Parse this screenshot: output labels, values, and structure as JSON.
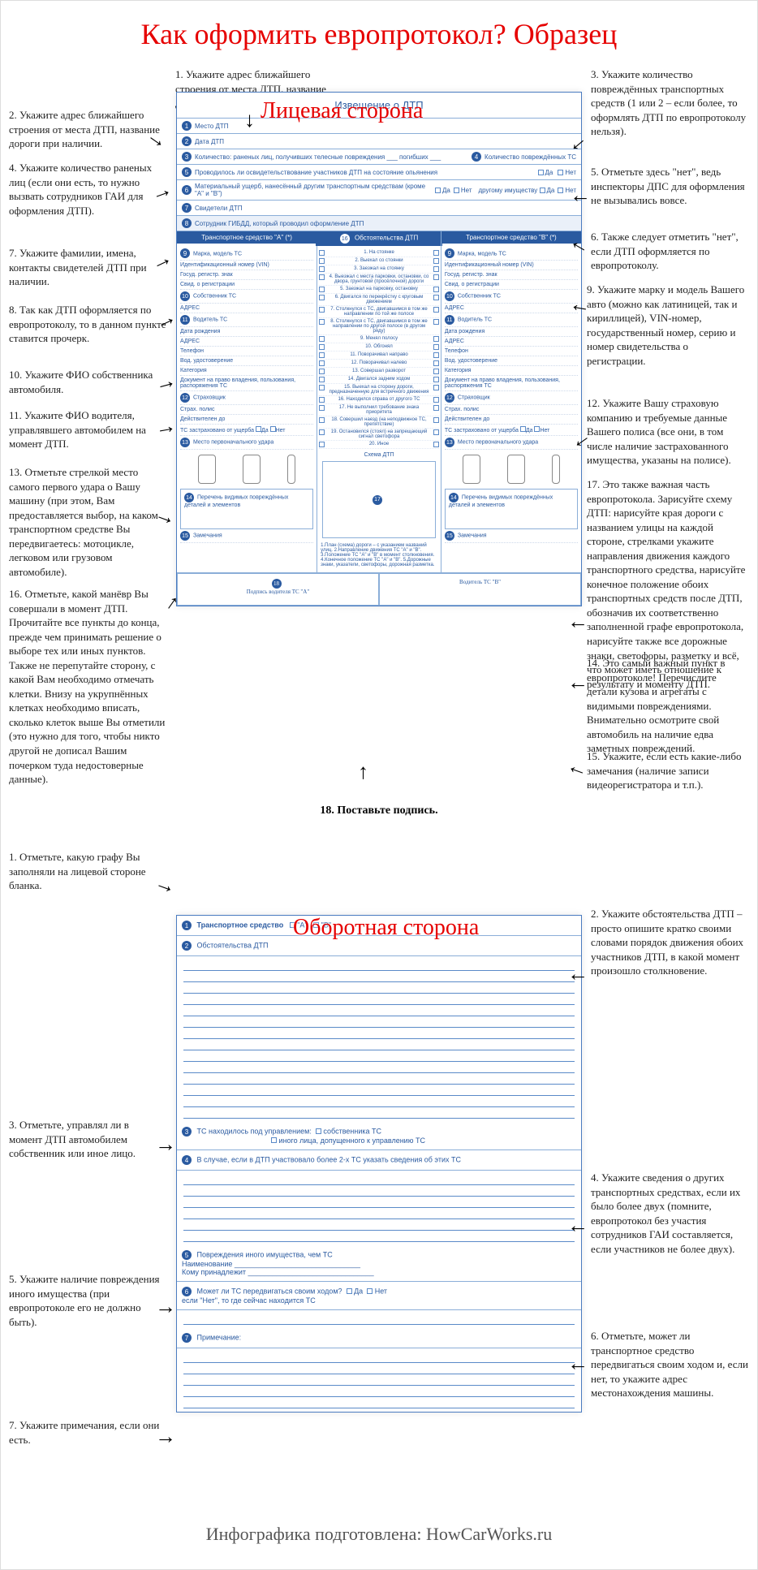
{
  "title": "Как оформить европротокол? Образец",
  "front_label": "Лицевая сторона",
  "back_label": "Оборотная сторона",
  "form_header": "Извещение о ДТП",
  "col_a_head": "Транспортное средство \"А\" (*)",
  "col_b_head": "Транспортное средство \"В\" (*)",
  "col_mid_head": "Обстоятельства ДТП",
  "row1": "Место ДТП",
  "row2": "Дата ДТП",
  "row3": "Количество: раненых лиц, получивших телесные повреждения ___ погибших ___",
  "row3b": "Количество повреждённых ТС",
  "row4": "Проводилось ли освидетельствование участников ДТП на состояние опьянения",
  "row5": "Материальный ущерб, нанесённый другим транспортным средствам (кроме \"А\" и \"В\")",
  "row5b": "другому имуществу",
  "row6": "Свидетели ДТП",
  "row7": "Сотрудник ГИБДД, который проводил оформление ДТП",
  "f_marka": "Марка, модель ТС",
  "f_vin": "Идентификационный номер (VIN)",
  "f_gos": "Госуд. регистр. знак",
  "f_svid": "Свид. о регистрации",
  "f_own": "Собственник ТС",
  "f_addr": "АДРЕС",
  "f_drv": "Водитель ТС",
  "f_dob": "Дата рождения",
  "f_tel": "Телефон",
  "f_vod": "Вод. удостоверение",
  "f_cat": "Категория",
  "f_doc": "Документ на право владения, пользования, распоряжения ТС",
  "f_ins": "Страховщик",
  "f_pol": "Страх. полис",
  "f_valid": "Действителен до",
  "f_zast": "ТС застраховано от ущерба",
  "f_hit": "Место первоначального удара",
  "f_dmg": "Перечень видимых повреждённых деталей и элементов",
  "f_note": "Замечания",
  "f_sign_a": "Подпись водителя ТС \"А\"",
  "f_sign_b": "Водитель ТС \"В\"",
  "schema": "Схема ДТП",
  "mid_items": [
    "На стоянке",
    "Выехал со стоянки",
    "Заезжал на стоянку",
    "Выезжал с места парковки, остановки, со двора, грунтовой (просёлочной) дороги",
    "Заезжал на парковку, остановку",
    "Двигался по перекрёстку с круговым движением",
    "Столкнулся с ТС, двигавшимся в том же направлении по той же полосе",
    "Столкнулся с ТС, двигавшимся в том же направлении по другой полосе (в другом ряду)",
    "Менял полосу",
    "Обгонял",
    "Поворачивал направо",
    "Поворачивал налево",
    "Совершал разворот",
    "Двигался задним ходом",
    "Выехал на сторону дороги, предназначенную для встречного движения",
    "Находился справа от другого ТС",
    "Не выполнил требование знака приоритета",
    "Совершил наезд (на неподвижное ТС, препятствие)",
    "Остановился (стоял) на запрещающий сигнал светофора",
    "Иное"
  ],
  "plan_text": "1.План (схема) дороги – с указанием названий улиц. 2.Направление движения ТС \"А\" и \"В\". 3.Положение ТС \"А\" и \"В\" в момент столкновения. 4.Конечное положение ТС \"А\" и \"В\". 5.Дорожные знаки, указатели, светофоры, дорожная разметка.",
  "back_r1": "Транспортное средство",
  "back_r2": "Обстоятельства ДТП",
  "back_r3": "ТС находилось под управлением:",
  "back_r3a": "собственника ТС",
  "back_r3b": "иного лица, допущенного к управлению ТС",
  "back_r4": "В случае, если в ДТП участвовало более 2-х ТС указать сведения об этих ТС",
  "back_r5": "Повреждения иного имущества, чем ТС",
  "back_r5a": "Наименование",
  "back_r5b": "Кому принадлежит",
  "back_r6": "Может ли ТС передвигаться своим ходом?",
  "back_r6a": "если \"Нет\", то где сейчас находится ТС",
  "back_r7": "Примечание:",
  "yes": "Да",
  "no": "Нет",
  "ann_front": {
    "a1": "1. Укажите адрес ближайшего строения от места ДТП, название дороги при наличии.",
    "a2": "2. Укажите адрес ближайшего строения от места ДТП, название дороги при наличии.",
    "a3": "3. Укажите количество повреждённых транспортных средств (1 или 2 – если более, то оформлять ДТП по европротоколу нельзя).",
    "a4": "4. Укажите количество раненых лиц (если они есть, то нужно вызвать сотрудников ГАИ для оформления ДТП).",
    "a5": "5. Отметьте здесь \"нет\", ведь инспекторы ДПС для оформления не вызывались вовсе.",
    "a6": "6. Также следует отметить \"нет\", если ДТП оформляется по европротоколу.",
    "a7": "7. Укажите фамилии, имена, контакты свидетелей ДТП при наличии.",
    "a8": "8. Так как ДТП оформляется по европротоколу, то в данном пункте ставится прочерк.",
    "a9": "9. Укажите марку и модель Вашего авто (можно как латиницей, так и кириллицей), VIN-номер, государственный номер, серию и номер свидетельства о регистрации.",
    "a10": "10. Укажите ФИО собственника автомобиля.",
    "a11": "11. Укажите ФИО водителя, управлявшего автомобилем на момент ДТП.",
    "a12": "12. Укажите Вашу страховую компанию и требуемые данные Вашего полиса (все они, в том числе наличие застрахованного имущества, указаны на полисе).",
    "a13": "13. Отметьте стрелкой место самого первого удара о Вашу машину (при этом, Вам предоставляется выбор, на каком транспортном средстве Вы передвигаетесь: мотоцикле, легковом или грузовом автомобиле).",
    "a14": "14. Это самый важный пункт в европротоколе! Перечислите детали кузова и агрегаты с видимыми повреждениями. Внимательно осмотрите свой автомобиль на наличие едва заметных повреждений.",
    "a15": "15. Укажите, если есть какие-либо замечания (наличие записи видеорегистратора и т.п.).",
    "a16": "16. Отметьте, какой манёвр Вы совершали в момент ДТП. Прочитайте все пункты до конца, прежде чем принимать решение о выборе тех или иных пунктов. Также не перепутайте сторону, с какой Вам необходимо отмечать клетки. Внизу на укрупнённых клетках необходимо вписать, сколько клеток выше Вы отметили (это нужно для того, чтобы никто другой не дописал Вашим почерком туда недостоверные данные).",
    "a17": "17. Это также важная часть европротокола. Зарисуйте схему ДТП: нарисуйте края дороги с названием улицы на каждой стороне, стрелками укажите направления движения каждого транспортного средства, нарисуйте конечное положение обоих транспортных средств после ДТП, обозначив их соответственно заполненной графе европротокола, нарисуйте также все дорожные знаки, светофоры, разметку и всё, что может иметь отношение к результату и моменту ДТП.",
    "a18": "18. Поставьте подпись."
  },
  "ann_back": {
    "b1": "1. Отметьте, какую графу Вы заполняли на лицевой стороне бланка.",
    "b2": "2. Укажите обстоятельства ДТП – просто опишите кратко своими словами порядок движения обоих участников ДТП, в какой момент произошло столкновение.",
    "b3": "3. Отметьте, управлял ли в момент ДТП автомобилем собственник или иное лицо.",
    "b4": "4. Укажите сведения о других транспортных средствах, если их было более двух (помните, европротокол без участия сотрудников ГАИ составляется, если участников не более двух).",
    "b5": "5. Укажите наличие повреждения иного имущества (при европротоколе его не должно быть).",
    "b6": "6. Отметьте, может ли транспортное средство передвигаться своим ходом и, если нет, то укажите адрес местонахождения машины.",
    "b7": "7. Укажите примечания, если они есть."
  },
  "footer": "Инфографика подготовлена: HowCarWorks.ru"
}
